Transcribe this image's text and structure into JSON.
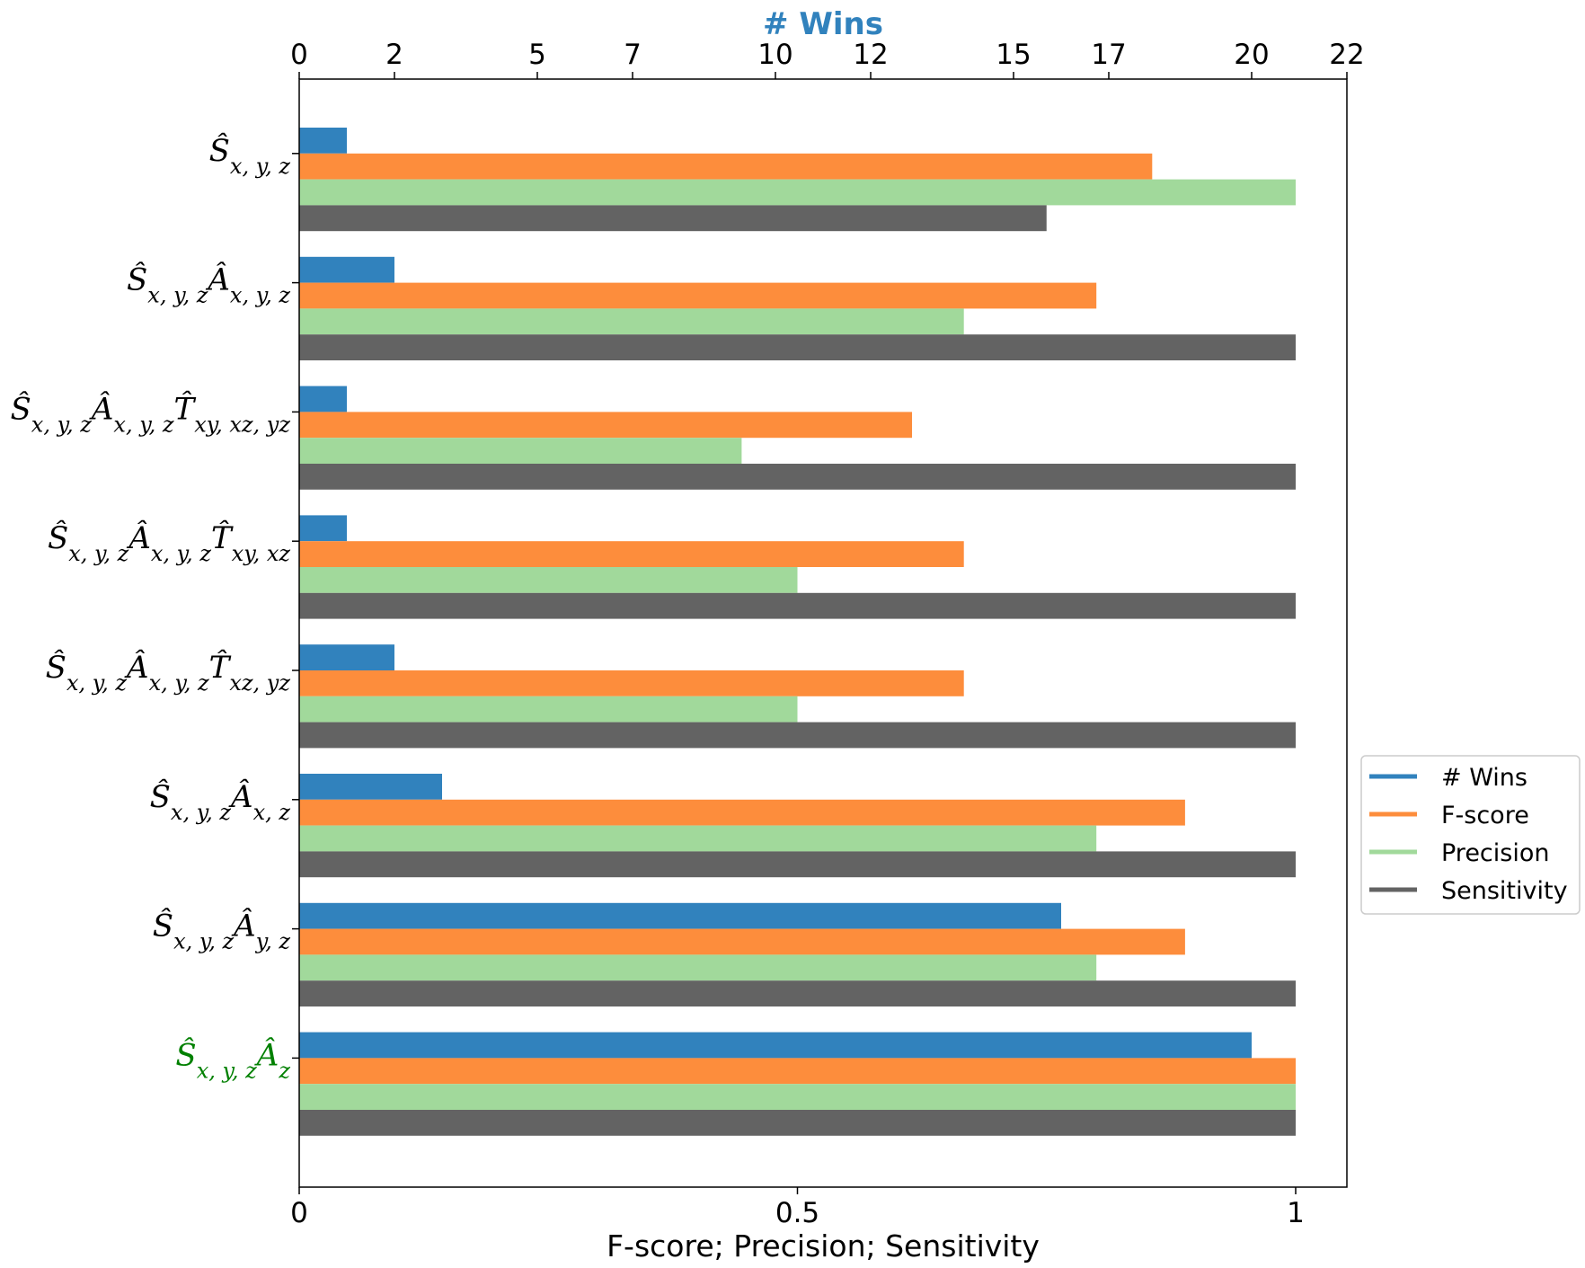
{
  "chart_data": {
    "type": "bar",
    "orientation": "horizontal",
    "top_axis_title": "# Wins",
    "xlabel": "F-score; Precision; Sensitivity",
    "top_axis_ticks": [
      "0",
      "2",
      "5",
      "7",
      "10",
      "12",
      "15",
      "17",
      "20",
      "22"
    ],
    "top_axis_tick_values": [
      0,
      2,
      5,
      7,
      10,
      12,
      15,
      17,
      20,
      22
    ],
    "top_axis_range": [
      0,
      22
    ],
    "bottom_axis_ticks": [
      "0",
      "0.5",
      "1"
    ],
    "bottom_axis_tick_values": [
      0,
      0.5,
      1
    ],
    "bottom_axis_range": [
      0,
      1.05
    ],
    "grid": false,
    "legend_position": "right",
    "categories": [
      {
        "base": "S",
        "base_sub": "x, y, z",
        "parts": []
      },
      {
        "base": "S",
        "base_sub": "x, y, z",
        "parts": [
          {
            "sym": "A",
            "sub": "x, y, z"
          }
        ]
      },
      {
        "base": "S",
        "base_sub": "x, y, z",
        "parts": [
          {
            "sym": "A",
            "sub": "x, y, z"
          },
          {
            "sym": "T",
            "sub": "xy, xz, yz"
          }
        ]
      },
      {
        "base": "S",
        "base_sub": "x, y, z",
        "parts": [
          {
            "sym": "A",
            "sub": "x, y, z"
          },
          {
            "sym": "T",
            "sub": "xy, xz"
          }
        ]
      },
      {
        "base": "S",
        "base_sub": "x, y, z",
        "parts": [
          {
            "sym": "A",
            "sub": "x, y, z"
          },
          {
            "sym": "T",
            "sub": "xz, yz"
          }
        ]
      },
      {
        "base": "S",
        "base_sub": "x, y, z",
        "parts": [
          {
            "sym": "A",
            "sub": "x, z"
          }
        ]
      },
      {
        "base": "S",
        "base_sub": "x, y, z",
        "parts": [
          {
            "sym": "A",
            "sub": "y, z"
          }
        ]
      },
      {
        "base": "S",
        "base_sub": "x, y, z",
        "parts": [
          {
            "sym": "A",
            "sub": "z"
          }
        ]
      }
    ],
    "highlight_category_index": 7,
    "highlight_color": "#008000",
    "series": [
      {
        "name": "# Wins",
        "axis": "top",
        "color": "#3182bd",
        "values": [
          1,
          2,
          1,
          1,
          2,
          3,
          16,
          20
        ]
      },
      {
        "name": "F-score",
        "axis": "bottom",
        "color": "#fd8d3c",
        "values": [
          0.856,
          0.8,
          0.615,
          0.667,
          0.667,
          0.889,
          0.889,
          1.0
        ]
      },
      {
        "name": "Precision",
        "axis": "bottom",
        "color": "#a1d99b",
        "values": [
          1.0,
          0.667,
          0.444,
          0.5,
          0.5,
          0.8,
          0.8,
          1.0
        ]
      },
      {
        "name": "Sensitivity",
        "axis": "bottom",
        "color": "#636363",
        "values": [
          0.75,
          1.0,
          1.0,
          1.0,
          1.0,
          1.0,
          1.0,
          1.0
        ]
      }
    ]
  }
}
